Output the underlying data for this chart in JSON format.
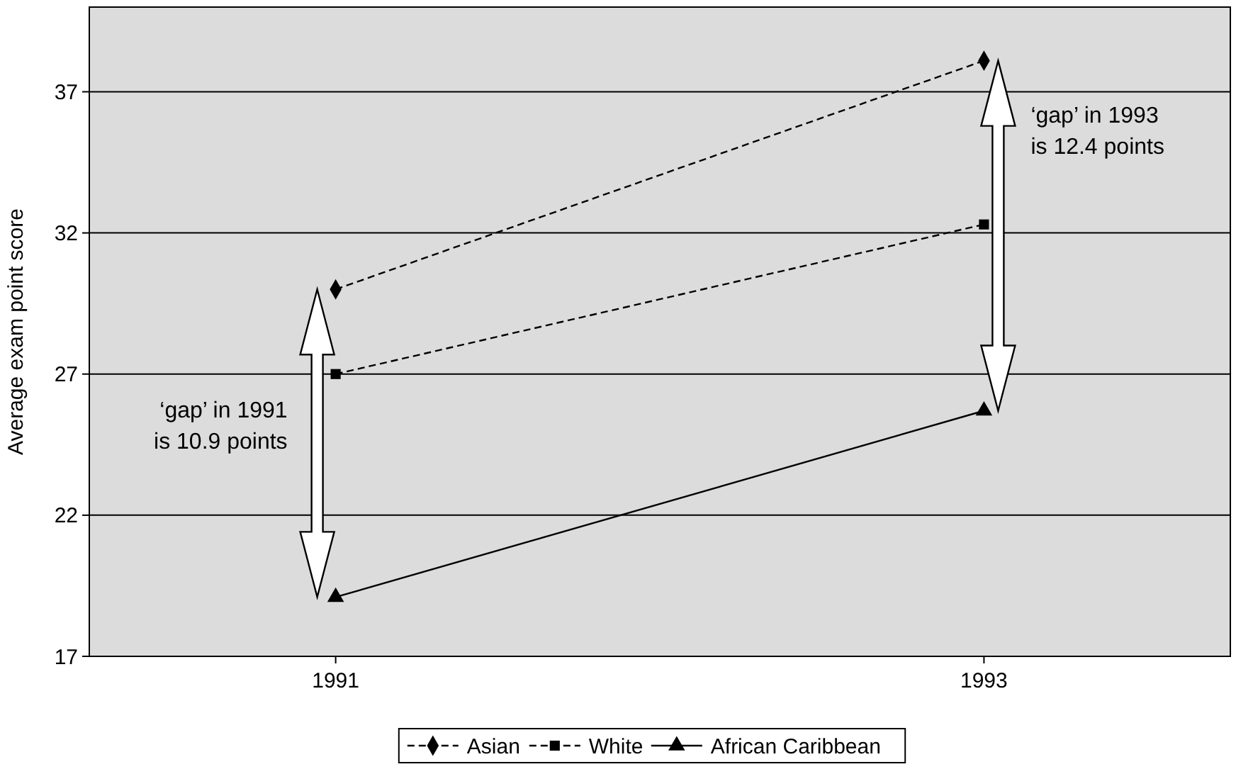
{
  "chart_data": {
    "type": "line",
    "ylabel": "Average exam point score",
    "categories": [
      "1991",
      "1993"
    ],
    "ylim": [
      17,
      40
    ],
    "yticks": [
      17,
      22,
      27,
      32,
      37
    ],
    "grid": "y",
    "legend": "bottom",
    "series": [
      {
        "name": "Asian",
        "color": "#000000",
        "values": [
          30.0,
          38.1
        ],
        "marker": "diamond",
        "line_style": "dashed"
      },
      {
        "name": "White",
        "color": "#000000",
        "values": [
          27.0,
          32.3
        ],
        "marker": "square",
        "line_style": "dashed"
      },
      {
        "name": "African Caribbean",
        "color": "#000000",
        "values": [
          19.1,
          25.7
        ],
        "marker": "triangle",
        "line_style": "solid"
      }
    ],
    "annotations": [
      "‘gap’ in 1991 is 10.9 points",
      "‘gap’ in 1993 is 12.4 points"
    ]
  }
}
